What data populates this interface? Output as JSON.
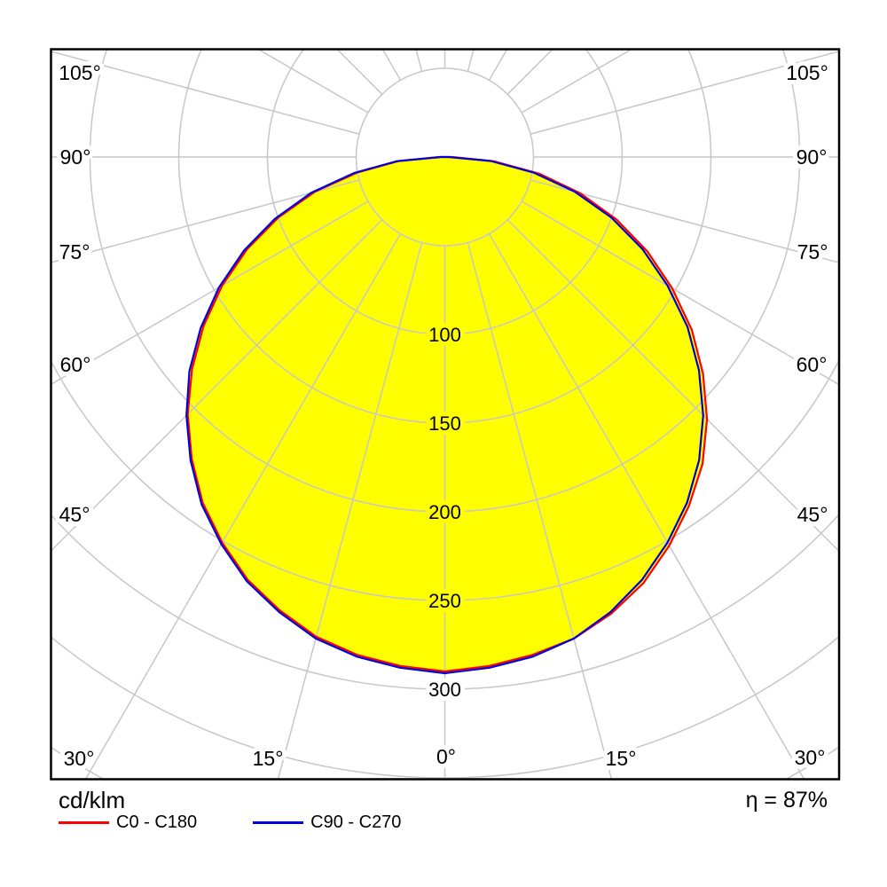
{
  "legend": {
    "unit_label": "cd/klm",
    "items": [
      {
        "label": "C0 - C180",
        "color": "#ff0000"
      },
      {
        "label": "C90 - C270",
        "color": "#0000dd"
      }
    ],
    "efficiency_label": "η = 87%"
  },
  "chart_data": {
    "type": "polar",
    "subtype": "luminous_intensity_distribution",
    "title": "",
    "unit": "cd/klm",
    "efficiency_percent": 87,
    "fill_color": "#ffff00",
    "grid_color": "#c6c6cc",
    "angle_axis": {
      "zero_direction": "down",
      "tick_step_deg": 15,
      "tick_labels": [
        "105°",
        "90°",
        "75°",
        "60°",
        "45°",
        "30°",
        "15°",
        "0°",
        "15°",
        "30°",
        "45°",
        "60°",
        "75°",
        "90°",
        "105°"
      ]
    },
    "radius_axis": {
      "grid_step": 50,
      "max_grid": 400,
      "labeled_ticks": [
        100,
        150,
        200,
        250,
        300
      ],
      "labels": [
        "100",
        "150",
        "200",
        "250",
        "300"
      ]
    },
    "angles_deg": [
      -90,
      -85,
      -80,
      -75,
      -70,
      -65,
      -60,
      -55,
      -50,
      -45,
      -40,
      -35,
      -30,
      -25,
      -20,
      -15,
      -10,
      -5,
      0,
      5,
      10,
      15,
      20,
      25,
      30,
      35,
      40,
      45,
      50,
      55,
      60,
      65,
      70,
      75,
      80,
      85,
      90
    ],
    "series": [
      {
        "name": "C0 - C180",
        "color": "#ff0000",
        "values": [
          3,
          26,
          50,
          76,
          100,
          123,
          145,
          166,
          186,
          205,
          222,
          238,
          251,
          263,
          272,
          280,
          285,
          288,
          290,
          288,
          285,
          281,
          274,
          265,
          253,
          240,
          226,
          209,
          190,
          170,
          148,
          126,
          103,
          79,
          54,
          28,
          4
        ]
      },
      {
        "name": "C90 - C270",
        "color": "#0000dd",
        "values": [
          2,
          27,
          52,
          78,
          102,
          125,
          147,
          168,
          188,
          206,
          223,
          239,
          252,
          264,
          273,
          281,
          286,
          289,
          291,
          289,
          286,
          281,
          273,
          263,
          251,
          238,
          223,
          206,
          187,
          167,
          145,
          123,
          100,
          76,
          51,
          26,
          2
        ]
      }
    ]
  }
}
